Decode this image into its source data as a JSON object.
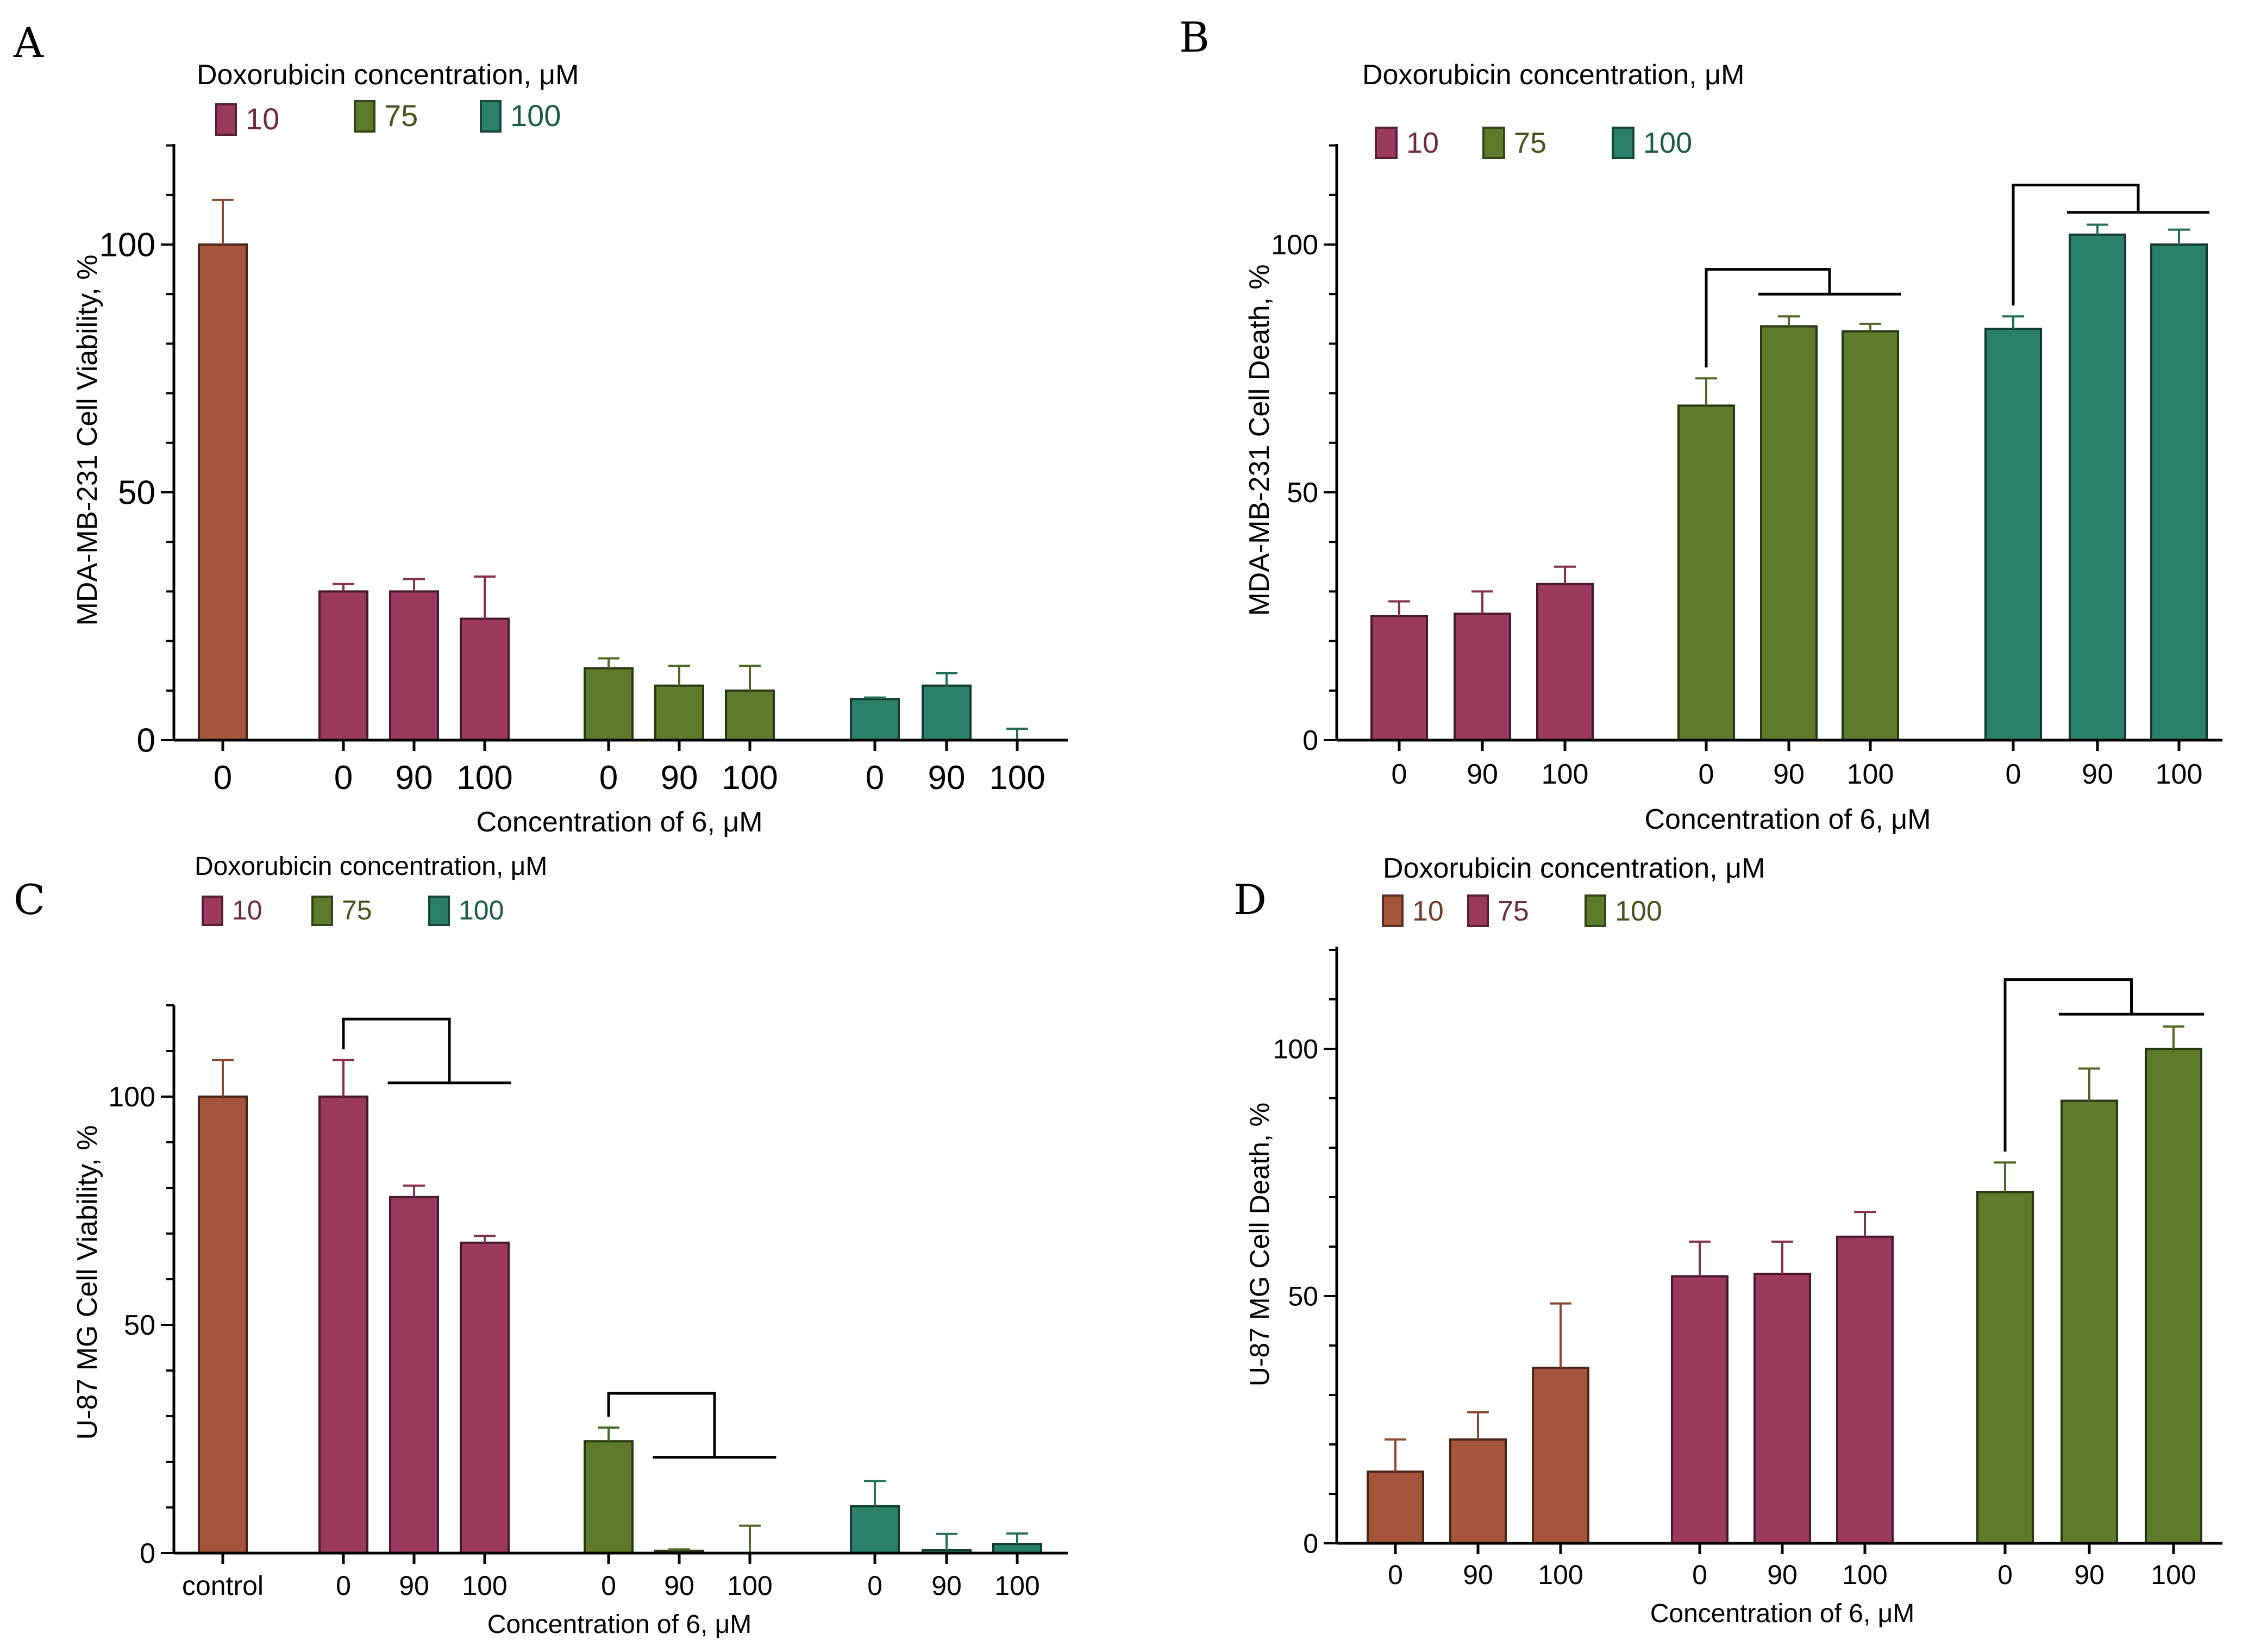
{
  "chart_data": [
    {
      "id": "A",
      "type": "bar",
      "panel_label": "A",
      "legend_title": "Doxorubicin concentration, μM",
      "legend": [
        {
          "label": "10",
          "color": "#9b3a5e"
        },
        {
          "label": "75",
          "color": "#5e7a2b"
        },
        {
          "label": "100",
          "color": "#2a8068"
        }
      ],
      "xlabel": "Concentration of 6, μM",
      "ylabel": "MDA-MB-231 Cell Viability, %",
      "ylim": [
        0,
        120
      ],
      "yticks": [
        0,
        50,
        100
      ],
      "bars": [
        {
          "label": "0",
          "value": 100,
          "error": 9,
          "color": "#a4553a"
        },
        {
          "label": "0",
          "value": 30,
          "error": 1.5,
          "color": "#9b3a5e"
        },
        {
          "label": "90",
          "value": 30,
          "error": 2.5,
          "color": "#9b3a5e"
        },
        {
          "label": "100",
          "value": 24.5,
          "error": 8.5,
          "color": "#9b3a5e"
        },
        {
          "label": "0",
          "value": 14.5,
          "error": 2,
          "color": "#5e7a2b"
        },
        {
          "label": "90",
          "value": 11,
          "error": 4,
          "color": "#5e7a2b"
        },
        {
          "label": "100",
          "value": 10,
          "error": 5,
          "color": "#5e7a2b"
        },
        {
          "label": "0",
          "value": 8.3,
          "error": 0.3,
          "color": "#2a8068"
        },
        {
          "label": "90",
          "value": 11,
          "error": 2.5,
          "color": "#2a8068"
        },
        {
          "label": "100",
          "value": 0,
          "error": 2.3,
          "color": "#2a8068"
        }
      ],
      "brackets": []
    },
    {
      "id": "B",
      "type": "bar",
      "panel_label": "B",
      "legend_title": "Doxorubicin concentration, μM",
      "legend": [
        {
          "label": "10",
          "color": "#9b3a5e"
        },
        {
          "label": "75",
          "color": "#5e7a2b"
        },
        {
          "label": "100",
          "color": "#2a8068"
        }
      ],
      "xlabel": "Concentration of 6, μM",
      "ylabel": "MDA-MB-231 Cell Death, %",
      "ylim": [
        0,
        120
      ],
      "yticks": [
        0,
        50,
        100
      ],
      "bars": [
        {
          "label": "0",
          "value": 25,
          "error": 3,
          "color": "#9b3a5e"
        },
        {
          "label": "90",
          "value": 25.5,
          "error": 4.5,
          "color": "#9b3a5e"
        },
        {
          "label": "100",
          "value": 31.5,
          "error": 3.5,
          "color": "#9b3a5e"
        },
        {
          "label": "0",
          "value": 67.5,
          "error": 5.5,
          "color": "#5e7a2b"
        },
        {
          "label": "90",
          "value": 83.5,
          "error": 2,
          "color": "#5e7a2b"
        },
        {
          "label": "100",
          "value": 82.5,
          "error": 1.5,
          "color": "#5e7a2b"
        },
        {
          "label": "0",
          "value": 83,
          "error": 2.5,
          "color": "#2a8068"
        },
        {
          "label": "90",
          "value": 102,
          "error": 2,
          "color": "#2a8068"
        },
        {
          "label": "100",
          "value": 100,
          "error": 3,
          "color": "#2a8068"
        }
      ],
      "brackets": [
        {
          "from": 3,
          "to_start": 4,
          "to_end": 5,
          "y_top": 95,
          "y_right": 90
        },
        {
          "from": 6,
          "to_start": 7,
          "to_end": 8,
          "y_top": 112,
          "y_right": 106.5
        }
      ]
    },
    {
      "id": "C",
      "type": "bar",
      "panel_label": "C",
      "legend_title": "Doxorubicin concentration, μM",
      "legend": [
        {
          "label": "10",
          "color": "#9b3a5e"
        },
        {
          "label": "75",
          "color": "#5e7a2b"
        },
        {
          "label": "100",
          "color": "#2a8068"
        }
      ],
      "xlabel": "Concentration of 6, μM",
      "ylabel": "U-87 MG Cell Viability, %",
      "ylim": [
        0,
        120
      ],
      "yticks": [
        0,
        50,
        100
      ],
      "bars": [
        {
          "label": "control",
          "value": 100,
          "error": 8,
          "color": "#a4553a"
        },
        {
          "label": "0",
          "value": 100,
          "error": 8,
          "color": "#9b3a5e"
        },
        {
          "label": "90",
          "value": 78,
          "error": 2.5,
          "color": "#9b3a5e"
        },
        {
          "label": "100",
          "value": 68,
          "error": 1.5,
          "color": "#9b3a5e"
        },
        {
          "label": "0",
          "value": 24.5,
          "error": 3,
          "color": "#5e7a2b"
        },
        {
          "label": "90",
          "value": 0.5,
          "error": 0.3,
          "color": "#5e7a2b"
        },
        {
          "label": "100",
          "value": 0,
          "error": 6,
          "color": "#5e7a2b"
        },
        {
          "label": "0",
          "value": 10.3,
          "error": 5.5,
          "color": "#2a8068"
        },
        {
          "label": "90",
          "value": 0.7,
          "error": 3.5,
          "color": "#2a8068"
        },
        {
          "label": "100",
          "value": 2,
          "error": 2.3,
          "color": "#2a8068"
        }
      ],
      "brackets": [
        {
          "from": 1,
          "to_start": 2,
          "to_end": 3,
          "y_top": 117,
          "y_right": 103
        },
        {
          "from": 4,
          "to_start": 5,
          "to_end": 6,
          "y_top": 35,
          "y_right": 21
        }
      ]
    },
    {
      "id": "D",
      "type": "bar",
      "panel_label": "D",
      "legend_title": "Doxorubicin concentration, μM",
      "legend": [
        {
          "label": "10",
          "color": "#a4553a"
        },
        {
          "label": "75",
          "color": "#9b3a5e"
        },
        {
          "label": "100",
          "color": "#5e7a2b"
        }
      ],
      "xlabel": "Concentration of 6, μM",
      "ylabel": "U-87 MG Cell Death, %",
      "ylim": [
        0,
        120
      ],
      "yticks": [
        0,
        50,
        100
      ],
      "bars": [
        {
          "label": "0",
          "value": 14.5,
          "error": 6.5,
          "color": "#a4553a"
        },
        {
          "label": "90",
          "value": 21,
          "error": 5.5,
          "color": "#a4553a"
        },
        {
          "label": "100",
          "value": 35.5,
          "error": 13,
          "color": "#a4553a"
        },
        {
          "label": "0",
          "value": 54,
          "error": 7,
          "color": "#9b3a5e"
        },
        {
          "label": "90",
          "value": 54.5,
          "error": 6.5,
          "color": "#9b3a5e"
        },
        {
          "label": "100",
          "value": 62,
          "error": 5,
          "color": "#9b3a5e"
        },
        {
          "label": "0",
          "value": 71,
          "error": 6,
          "color": "#5e7a2b"
        },
        {
          "label": "90",
          "value": 89.5,
          "error": 6.5,
          "color": "#5e7a2b"
        },
        {
          "label": "100",
          "value": 100,
          "error": 4.5,
          "color": "#5e7a2b"
        }
      ],
      "brackets": [
        {
          "from": 6,
          "to_start": 7,
          "to_end": 8,
          "y_top": 114,
          "y_right": 107
        }
      ]
    }
  ]
}
